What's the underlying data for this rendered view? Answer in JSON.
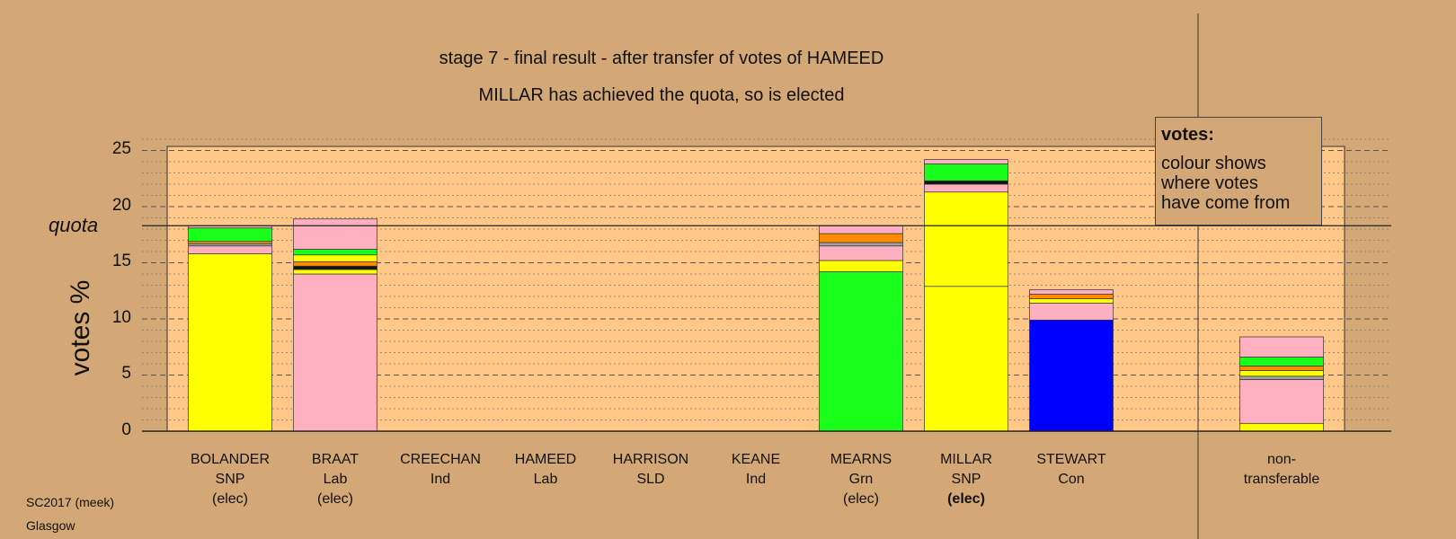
{
  "chart_data": {
    "type": "bar",
    "title": "stage 7 - final result - after transfer of votes of HAMEED",
    "subtitle": "MILLAR has achieved the quota, so is elected",
    "ylabel": "votes %",
    "ylim": [
      0,
      25
    ],
    "yticks": [
      "0",
      "5",
      "10",
      "15",
      "20",
      "25"
    ],
    "quota": 18.3,
    "quota_label": "quota",
    "grid": true,
    "candidates": [
      {
        "name": "BOLANDER",
        "party": "SNP",
        "status": "(elec)",
        "status_bold": false,
        "segments": [
          {
            "value": 15.8,
            "color": "#ffff00"
          },
          {
            "value": 0.7,
            "color": "#ffb0c0"
          },
          {
            "value": 0.2,
            "color": "#a0a0a0"
          },
          {
            "value": 0.2,
            "color": "#ff8c00"
          },
          {
            "value": 1.2,
            "color": "#1aff1a"
          },
          {
            "value": 0.2,
            "color": "#ffb0c0"
          }
        ]
      },
      {
        "name": "BRAAT",
        "party": "Lab",
        "status": "(elec)",
        "status_bold": false,
        "segments": [
          {
            "value": 14.0,
            "color": "#ffb0c0"
          },
          {
            "value": 0.4,
            "color": "#ffff00"
          },
          {
            "value": 0.3,
            "color": "#111111"
          },
          {
            "value": 0.4,
            "color": "#ff8c00"
          },
          {
            "value": 0.6,
            "color": "#ffff00"
          },
          {
            "value": 0.5,
            "color": "#1aff1a"
          },
          {
            "value": 2.7,
            "color": "#ffb0c0"
          }
        ]
      },
      {
        "name": "CREECHAN",
        "party": "Ind",
        "status": "",
        "status_bold": false,
        "segments": []
      },
      {
        "name": "HAMEED",
        "party": "Lab",
        "status": "",
        "status_bold": false,
        "segments": []
      },
      {
        "name": "HARRISON",
        "party": "SLD",
        "status": "",
        "status_bold": false,
        "segments": []
      },
      {
        "name": "KEANE",
        "party": "Ind",
        "status": "",
        "status_bold": false,
        "segments": []
      },
      {
        "name": "MEARNS",
        "party": "Grn",
        "status": "(elec)",
        "status_bold": false,
        "segments": [
          {
            "value": 14.2,
            "color": "#1aff1a"
          },
          {
            "value": 1.0,
            "color": "#ffff00"
          },
          {
            "value": 1.3,
            "color": "#ffb0c0"
          },
          {
            "value": 0.3,
            "color": "#a0a0a0"
          },
          {
            "value": 0.8,
            "color": "#ff8c00"
          },
          {
            "value": 0.7,
            "color": "#ffb0c0"
          }
        ]
      },
      {
        "name": "MILLAR",
        "party": "SNP",
        "status": "(elec)",
        "status_bold": true,
        "segments": [
          {
            "value": 12.9,
            "color": "#ffff00"
          },
          {
            "value": 8.4,
            "color": "#ffff00"
          },
          {
            "value": 0.7,
            "color": "#ffb0c0"
          },
          {
            "value": 0.3,
            "color": "#111111"
          },
          {
            "value": 1.5,
            "color": "#1aff1a"
          },
          {
            "value": 0.4,
            "color": "#ffb0c0"
          }
        ]
      },
      {
        "name": "STEWART",
        "party": "Con",
        "status": "",
        "status_bold": false,
        "segments": [
          {
            "value": 9.9,
            "color": "#0000ff"
          },
          {
            "value": 1.5,
            "color": "#ffb0c0"
          },
          {
            "value": 0.4,
            "color": "#ffff00"
          },
          {
            "value": 0.4,
            "color": "#ff8c00"
          },
          {
            "value": 0.4,
            "color": "#ffb0c0"
          }
        ]
      }
    ],
    "nontransferable": {
      "label_1": "non-",
      "label_2": "transferable",
      "segments": [
        {
          "value": 0.7,
          "color": "#ffff00"
        },
        {
          "value": 3.9,
          "color": "#ffb0c0"
        },
        {
          "value": 0.3,
          "color": "#a0a0a0"
        },
        {
          "value": 0.5,
          "color": "#ffff00"
        },
        {
          "value": 0.4,
          "color": "#ff8c00"
        },
        {
          "value": 0.8,
          "color": "#1aff1a"
        },
        {
          "value": 1.8,
          "color": "#ffb0c0"
        }
      ]
    },
    "colors": {
      "background": "#d4a876",
      "plot_area": "#ffc888"
    }
  },
  "legend": {
    "title": "votes:",
    "line_1": "colour shows",
    "line_2": "where votes",
    "line_3": "have come from"
  },
  "footer": {
    "line_1": "SC2017 (meek)",
    "line_2": "Glasgow"
  }
}
